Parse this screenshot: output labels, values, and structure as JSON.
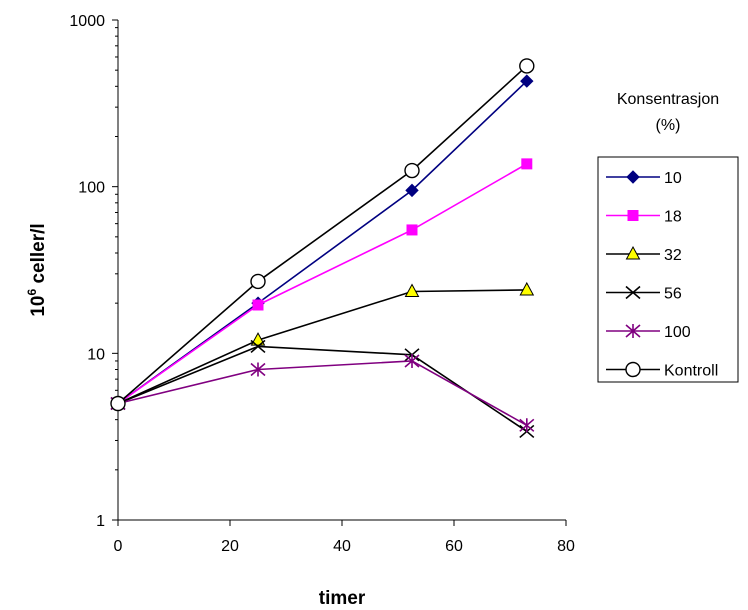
{
  "chart_data": {
    "type": "line",
    "xlabel": "timer",
    "ylabel_base": "10",
    "ylabel_sup": "6",
    "ylabel_rest": " celler/l",
    "x_scale": "linear",
    "y_scale": "log",
    "xlim": [
      0,
      80
    ],
    "ylim": [
      1,
      1000
    ],
    "x_ticks": [
      0,
      20,
      40,
      60,
      80
    ],
    "y_ticks": [
      1,
      10,
      100,
      1000
    ],
    "grid": false,
    "legend_title_line1": "Konsentrasjon",
    "legend_title_line2": "(%)",
    "legend_position": "right",
    "x": [
      0,
      25,
      52.5,
      73
    ],
    "series": [
      {
        "name": "10",
        "color": "#000080",
        "marker": "diamond",
        "values": [
          5,
          20,
          95,
          430
        ]
      },
      {
        "name": "18",
        "color": "#ff00ff",
        "marker": "square",
        "values": [
          5,
          19.5,
          55,
          137
        ]
      },
      {
        "name": "32",
        "color": "#000000",
        "marker": "triangle",
        "marker_fill": "#ffff00",
        "values": [
          5,
          12,
          23.5,
          24
        ]
      },
      {
        "name": "56",
        "color": "#000000",
        "marker": "x",
        "values": [
          5,
          11,
          9.8,
          3.4
        ]
      },
      {
        "name": "100",
        "color": "#800080",
        "marker": "star",
        "values": [
          5,
          8,
          9,
          3.7
        ]
      },
      {
        "name": "Kontroll",
        "color": "#000000",
        "marker": "circle",
        "values": [
          5,
          27,
          125,
          530
        ]
      }
    ]
  }
}
